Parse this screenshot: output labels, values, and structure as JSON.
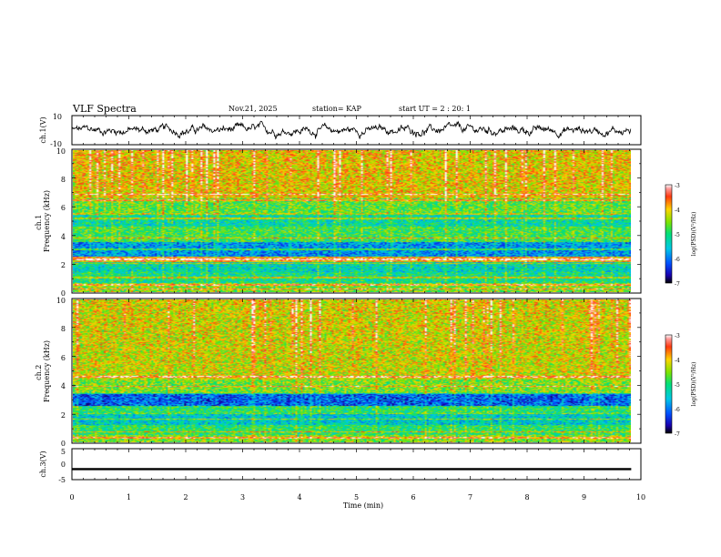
{
  "header": {
    "title": "VLF Spectra",
    "date": "Nov.21, 2025",
    "station": "station= KAP",
    "start_ut": "start UT =  2 : 20: 1"
  },
  "chart_data": [
    {
      "type": "line",
      "name": "ch1-waveform",
      "ylabel": "ch.1(V)",
      "ylim": [
        -10,
        10
      ],
      "yticks": [
        "10",
        "-10"
      ],
      "x_range_min": [
        0,
        9.83
      ],
      "approx_level": 0,
      "approx_amplitude": [
        -6,
        8
      ]
    },
    {
      "type": "heatmap",
      "name": "ch1-spectrogram",
      "ylabel": "ch.1\nFrequency (kHz)",
      "ylim": [
        0,
        10
      ],
      "yticks": [
        "0",
        "2",
        "4",
        "6",
        "8",
        "10"
      ],
      "xlim_min": [
        0,
        9.83
      ],
      "bands_khz": [
        {
          "f0": 0.0,
          "f1": 0.6,
          "level": -4.6
        },
        {
          "f0": 0.6,
          "f1": 1.4,
          "level": -5.2
        },
        {
          "f0": 1.4,
          "f1": 2.1,
          "level": -5.4
        },
        {
          "f0": 2.1,
          "f1": 2.5,
          "level": -4.0
        },
        {
          "f0": 2.5,
          "f1": 3.5,
          "level": -5.9
        },
        {
          "f0": 3.5,
          "f1": 4.6,
          "level": -4.9
        },
        {
          "f0": 4.6,
          "f1": 5.6,
          "level": -5.3
        },
        {
          "f0": 5.6,
          "f1": 6.6,
          "level": -4.8
        },
        {
          "f0": 6.6,
          "f1": 10.0,
          "level": -4.2
        }
      ],
      "lines_khz": [
        0.2,
        0.5,
        1.0,
        2.0,
        2.3,
        3.0,
        3.8,
        5.2,
        5.5,
        6.5,
        6.9
      ],
      "colorbar": {
        "label": "log(PSD)(V²/Hz)",
        "min": -7,
        "max": -3,
        "ticks": [
          "-3",
          "-4",
          "-5",
          "-6",
          "-7"
        ]
      }
    },
    {
      "type": "heatmap",
      "name": "ch2-spectrogram",
      "ylabel": "ch.2\nFrequency (kHz)",
      "ylim": [
        0,
        10
      ],
      "yticks": [
        "0",
        "2",
        "4",
        "6",
        "8",
        "10"
      ],
      "xlim_min": [
        0,
        9.83
      ],
      "bands_khz": [
        {
          "f0": 0.0,
          "f1": 0.5,
          "level": -4.6
        },
        {
          "f0": 0.5,
          "f1": 1.2,
          "level": -5.0
        },
        {
          "f0": 1.2,
          "f1": 2.0,
          "level": -5.5
        },
        {
          "f0": 2.0,
          "f1": 2.5,
          "level": -5.0
        },
        {
          "f0": 2.5,
          "f1": 3.4,
          "level": -6.2
        },
        {
          "f0": 3.4,
          "f1": 4.4,
          "level": -4.6
        },
        {
          "f0": 4.4,
          "f1": 10.0,
          "level": -4.3
        }
      ],
      "lines_khz": [
        0.3,
        0.7,
        1.6,
        2.0,
        3.4,
        3.9,
        4.6
      ],
      "colorbar": {
        "label": "log(PSD)(V²/Hz)",
        "min": -7,
        "max": -3,
        "ticks": [
          "-3",
          "-4",
          "-5",
          "-6",
          "-7"
        ]
      }
    },
    {
      "type": "line",
      "name": "ch3-waveform",
      "ylabel": "ch.3(V)",
      "ylim": [
        -5,
        5
      ],
      "yticks": [
        "5",
        "0",
        "-5"
      ],
      "x_range_min": [
        0,
        9.83
      ],
      "approx_level": -1.6,
      "band_halfwidth": 0.35
    }
  ],
  "xaxis": {
    "label": "Time (min)",
    "xlim": [
      0,
      10
    ],
    "ticks": [
      "0",
      "1",
      "2",
      "3",
      "4",
      "5",
      "6",
      "7",
      "8",
      "9",
      "10"
    ]
  }
}
